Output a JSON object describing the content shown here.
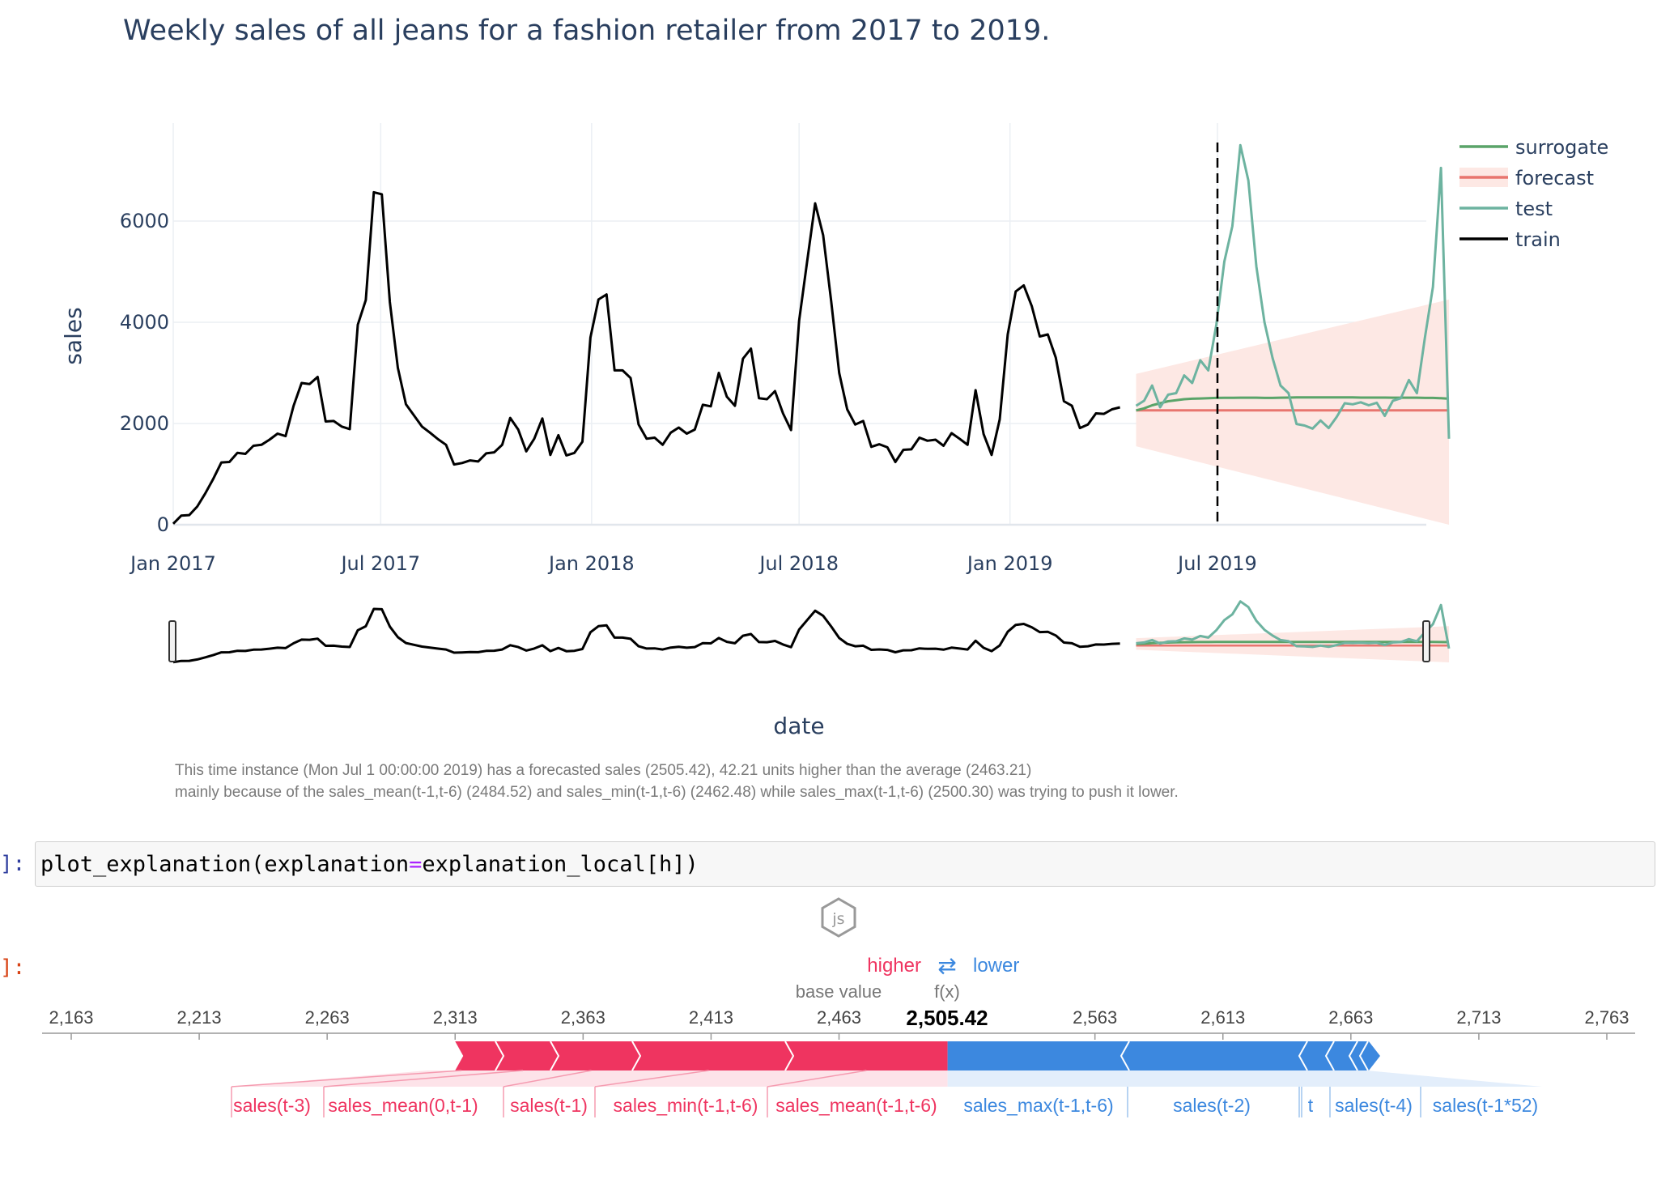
{
  "title": "Weekly sales of all jeans for a fashion retailer from 2017 to 2019.",
  "chart_data": {
    "type": "line",
    "ylabel": "sales",
    "xlabel": "date",
    "ylim": [
      0,
      7800
    ],
    "y_ticks": [
      0,
      2000,
      4000,
      6000
    ],
    "x_tick_labels": [
      "Jan 2017",
      "Jul 2017",
      "Jan 2018",
      "Jul 2018",
      "Jan 2019",
      "Jul 2019"
    ],
    "legend_position": "top-right",
    "legend": [
      "surrogate",
      "forecast",
      "test",
      "train"
    ],
    "colors": {
      "surrogate": "#5aa469",
      "forecast": "#e8756e",
      "test": "#6db3a0",
      "train": "#000000",
      "band": "#fde8e4"
    },
    "series": [
      {
        "name": "train",
        "x_start": "2017-01-01",
        "frequency": "weekly",
        "values": [
          20,
          180,
          190,
          360,
          620,
          910,
          1230,
          1240,
          1420,
          1400,
          1560,
          1580,
          1680,
          1800,
          1750,
          2350,
          2800,
          2780,
          2920,
          2040,
          2050,
          1940,
          1890,
          3950,
          4440,
          6570,
          6530,
          4400,
          3100,
          2380,
          2160,
          1940,
          1820,
          1690,
          1580,
          1190,
          1220,
          1270,
          1250,
          1410,
          1430,
          1580,
          2110,
          1880,
          1450,
          1700,
          2100,
          1380,
          1770,
          1370,
          1420,
          1640,
          3700,
          4450,
          4550,
          3050,
          3050,
          2900,
          1980,
          1700,
          1720,
          1580,
          1820,
          1920,
          1800,
          1880,
          2370,
          2340,
          3000,
          2530,
          2350,
          3280,
          3480,
          2500,
          2480,
          2640,
          2200,
          1870,
          4030,
          5200,
          6350,
          5720,
          4420,
          3000,
          2280,
          1980,
          2050,
          1540,
          1590,
          1530,
          1240,
          1480,
          1490,
          1720,
          1660,
          1680,
          1560,
          1810,
          1700,
          1580,
          2660,
          1790,
          1380,
          2080,
          3760,
          4610,
          4730,
          4320,
          3720,
          3760,
          3300,
          2440,
          2350,
          1910,
          1980,
          2200,
          2190,
          2280,
          2320
        ]
      },
      {
        "name": "test",
        "x_start": "2019-04-21",
        "frequency": "weekly",
        "values": [
          2350,
          2450,
          2750,
          2320,
          2570,
          2600,
          2950,
          2800,
          3250,
          3050,
          3950,
          5200,
          5900,
          7500,
          6800,
          5100,
          4000,
          3300,
          2750,
          2600,
          1990,
          1960,
          1900,
          2060,
          1910,
          2130,
          2400,
          2380,
          2420,
          2360,
          2410,
          2150,
          2450,
          2500,
          2860,
          2600,
          3700,
          4700,
          7050,
          1700
        ]
      },
      {
        "name": "surrogate",
        "x_start": "2019-04-21",
        "frequency": "weekly",
        "values": [
          2260,
          2300,
          2360,
          2400,
          2440,
          2460,
          2480,
          2490,
          2495,
          2500,
          2505,
          2507,
          2508,
          2510,
          2510,
          2510,
          2505,
          2505,
          2510,
          2512,
          2515,
          2515,
          2515,
          2515,
          2515,
          2515,
          2515,
          2515,
          2512,
          2512,
          2512,
          2512,
          2510,
          2510,
          2510,
          2510,
          2505,
          2505,
          2500,
          2490
        ]
      },
      {
        "name": "forecast",
        "x_start": "2019-04-21",
        "frequency": "weekly",
        "constant": 2260,
        "band_start": [
          1550,
          2980
        ],
        "band_end": [
          0,
          4450
        ]
      }
    ],
    "marker_date": "2019-07-01"
  },
  "explanation": {
    "line1": "This time instance (Mon Jul  1 00:00:00 2019) has a forecasted sales (2505.42), 42.21 units higher than the average (2463.21)",
    "line2": " mainly because of the sales_mean(t-1,t-6) (2484.52) and sales_min(t-1,t-6) (2462.48) while sales_max(t-1,t-6) (2500.30) was trying to push it lower."
  },
  "cell1": {
    "prompt": "]:",
    "code_prefix": "plot_explanation(explanation",
    "code_op": "=",
    "code_suffix": "explanation_local[h])"
  },
  "js_badge": "js",
  "cell2": {
    "prompt": "]:"
  },
  "force_plot": {
    "higher_label": "higher",
    "lower_label": "lower",
    "arrow_glyph": "⇄",
    "base_value_label": "base value",
    "fx_label": "f(x)",
    "output_value": 2505.42,
    "output_value_text": "2,505.42",
    "base_value": 2463.21,
    "axis_min": 2163,
    "axis_max": 2763,
    "ticks": [
      "2,163",
      "2,213",
      "2,263",
      "2,313",
      "2,363",
      "2,413",
      "2,463",
      "2,563",
      "2,613",
      "2,663",
      "2,713",
      "2,763"
    ],
    "colors": {
      "positive": "#ef3460",
      "negative": "#3c88df"
    },
    "positive_bar_start": 2313,
    "negative_bar_end": 2670,
    "positive_features": [
      "sales(t-3)",
      "sales_mean(0,t-1)",
      "sales(t-1)",
      "sales_min(t-1,t-6)",
      "sales_mean(t-1,t-6)"
    ],
    "negative_features": [
      "sales_max(t-1,t-6)",
      "sales(t-2)",
      "t",
      "sales(t-4)",
      "sales(t-1*52)"
    ]
  }
}
